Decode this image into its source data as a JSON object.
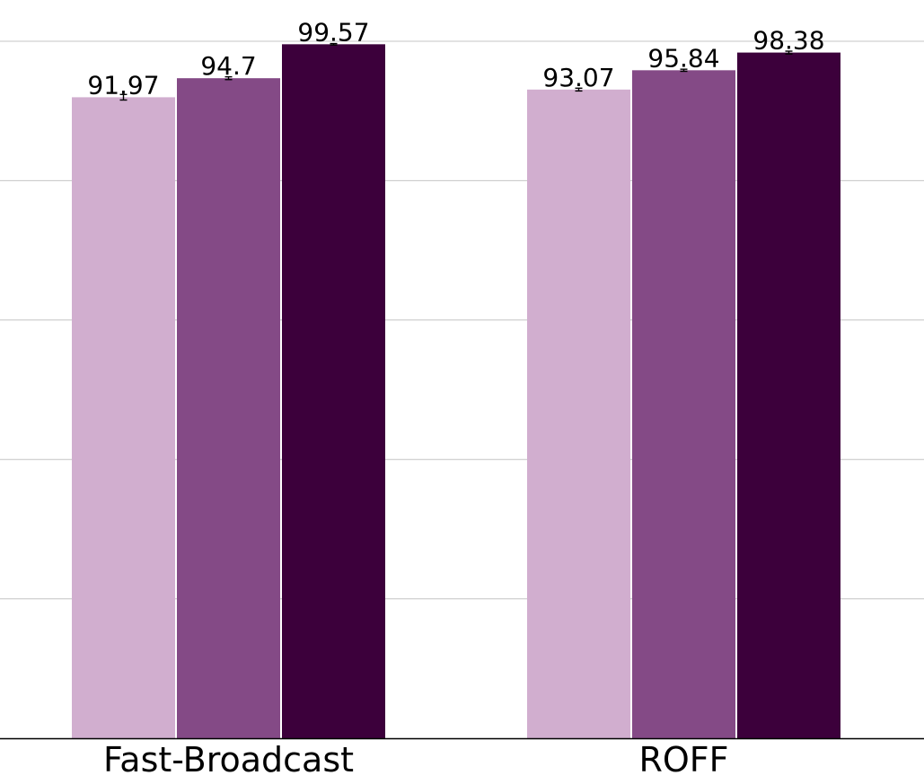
{
  "chart_data": {
    "type": "bar",
    "categories": [
      "Fast-Broadcast",
      "ROFF"
    ],
    "series": [
      {
        "color": "#d1aecf",
        "values": [
          91.97,
          93.07
        ],
        "errors": [
          0.4,
          0.2
        ]
      },
      {
        "color": "#844a86",
        "values": [
          94.7,
          95.84
        ],
        "errors": [
          0.2,
          0.15
        ]
      },
      {
        "color": "#3c003b",
        "values": [
          99.57,
          98.38
        ],
        "errors": [
          0.1,
          0.2
        ]
      }
    ],
    "value_labels": [
      [
        "91.97",
        "94.7",
        "99.57"
      ],
      [
        "93.07",
        "95.84",
        "98.38"
      ]
    ],
    "ylim": [
      0,
      100
    ],
    "yticks": [
      0,
      20,
      40,
      60,
      80,
      100
    ],
    "grid": true,
    "title": "",
    "xlabel": "",
    "ylabel": ""
  }
}
